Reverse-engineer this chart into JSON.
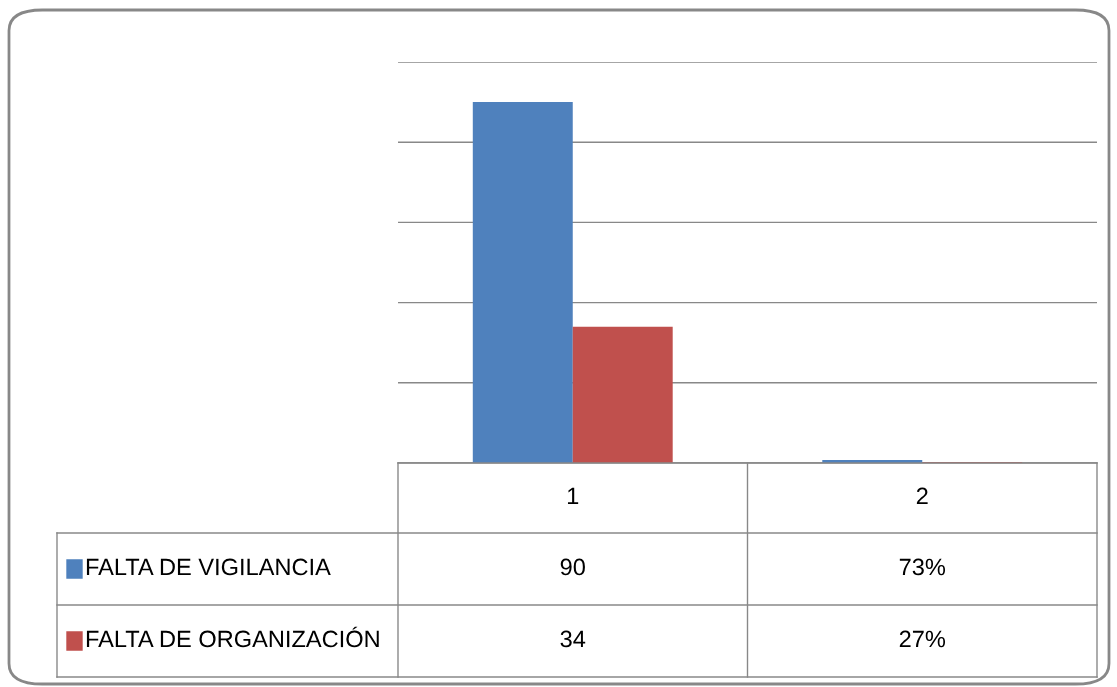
{
  "chart_data": {
    "type": "bar",
    "categories": [
      "1",
      "2"
    ],
    "series": [
      {
        "name": "FALTA DE VIGILANCIA",
        "color": "#4f81bd",
        "values": [
          90,
          0.73
        ],
        "value_labels": [
          "90",
          "73%"
        ]
      },
      {
        "name": "FALTA DE ORGANIZACIÓN",
        "color": "#c0504d",
        "values": [
          34,
          0.27
        ],
        "value_labels": [
          "34",
          "27%"
        ]
      }
    ],
    "ylim": [
      0,
      100
    ],
    "yticks": [
      {
        "value": 0,
        "label": null
      },
      {
        "value": 20,
        "label": null
      },
      {
        "value": 40,
        "label": null
      },
      {
        "value": 60,
        "label": null
      },
      {
        "value": 80,
        "label": null
      },
      {
        "value": 100,
        "label": null
      }
    ],
    "grid": "y",
    "legend": "bottom left"
  }
}
